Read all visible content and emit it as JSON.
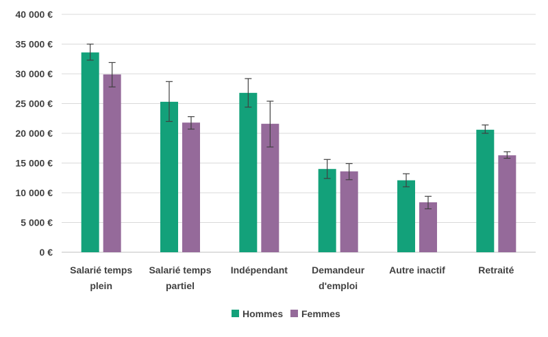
{
  "chart_data": {
    "type": "bar",
    "title": "",
    "xlabel": "",
    "ylabel": "",
    "ylim": [
      0,
      40000
    ],
    "yticks": [
      0,
      5000,
      10000,
      15000,
      20000,
      25000,
      30000,
      35000,
      40000
    ],
    "ytick_labels": [
      "0 €",
      "5 000 €",
      "10 000 €",
      "15 000 €",
      "20 000 €",
      "25 000 €",
      "30 000 €",
      "35 000 €",
      "40 000 €"
    ],
    "grid": true,
    "legend_position": "bottom",
    "categories": [
      [
        "Salarié temps",
        "plein"
      ],
      [
        "Salarié temps",
        "partiel"
      ],
      [
        "Indépendant"
      ],
      [
        "Demandeur",
        "d'emploi"
      ],
      [
        "Autre inactif"
      ],
      [
        "Retraité"
      ]
    ],
    "series": [
      {
        "name": "Hommes",
        "color": "#13a17a",
        "values": [
          33600,
          25300,
          26800,
          14000,
          12100,
          20600
        ],
        "error_low": [
          32300,
          22000,
          24400,
          12400,
          11000,
          20000
        ],
        "error_high": [
          35000,
          28700,
          29200,
          15600,
          13200,
          21400
        ]
      },
      {
        "name": "Femmes",
        "color": "#956a9a",
        "values": [
          29900,
          21800,
          21600,
          13600,
          8400,
          16300
        ],
        "error_low": [
          27800,
          20700,
          17700,
          12200,
          7300,
          15800
        ],
        "error_high": [
          31900,
          22800,
          25400,
          14900,
          9400,
          16900
        ]
      }
    ]
  }
}
